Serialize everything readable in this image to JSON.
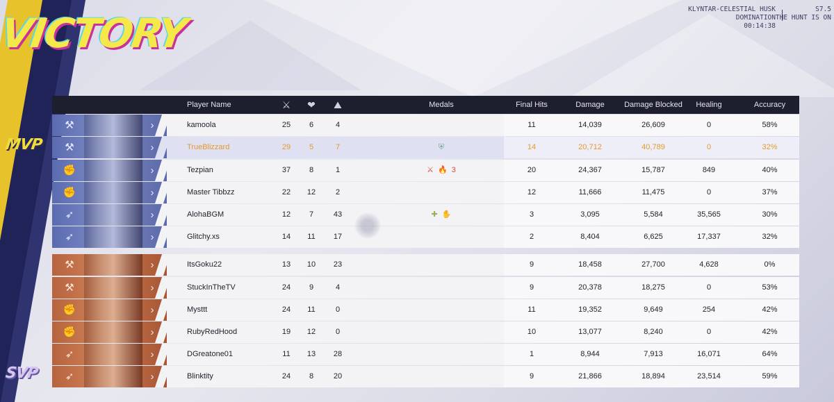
{
  "banner": {
    "title": "VICTORY"
  },
  "match": {
    "map": "KLYNTAR-CELESTIAL HUSK",
    "mode": "DOMINATION",
    "time": "00:14:38"
  },
  "season": {
    "number": "S7.5",
    "name": "THE HUNT IS ON"
  },
  "badges": {
    "mvp": "MVP",
    "svp": "SVP"
  },
  "headers": {
    "player_name": "Player Name",
    "kills_icon": "crossed-swords-icon",
    "deaths_icon": "broken-heart-icon",
    "assists_icon": "assist-icon",
    "medals": "Medals",
    "final_hits": "Final Hits",
    "damage": "Damage",
    "damage_blocked": "Damage Blocked",
    "healing": "Healing",
    "accuracy": "Accuracy"
  },
  "teams": [
    {
      "color": "#5b6bb0",
      "players": [
        {
          "name": "kamoola",
          "role": "vanguard",
          "k": "25",
          "d": "6",
          "a": "4",
          "medals": [],
          "final_hits": "11",
          "damage": "14,039",
          "blocked": "26,609",
          "healing": "0",
          "accuracy": "58%",
          "mvp": false
        },
        {
          "name": "TrueBlizzard",
          "role": "vanguard",
          "k": "29",
          "d": "5",
          "a": "7",
          "medals": [
            "shield-medal-icon"
          ],
          "final_hits": "14",
          "damage": "20,712",
          "blocked": "40,789",
          "healing": "0",
          "accuracy": "32%",
          "mvp": true
        },
        {
          "name": "Tezpian",
          "role": "duelist",
          "k": "37",
          "d": "8",
          "a": "1",
          "medals": [
            "swords-medal-icon",
            "fire-medal-icon",
            "streak-medal-icon"
          ],
          "final_hits": "20",
          "damage": "24,367",
          "blocked": "15,787",
          "healing": "849",
          "accuracy": "40%",
          "mvp": false
        },
        {
          "name": "Master Tibbzz",
          "role": "duelist",
          "k": "22",
          "d": "12",
          "a": "2",
          "medals": [],
          "final_hits": "12",
          "damage": "11,666",
          "blocked": "11,475",
          "healing": "0",
          "accuracy": "37%",
          "mvp": false
        },
        {
          "name": "AlohaBGM",
          "role": "strategist",
          "k": "12",
          "d": "7",
          "a": "43",
          "medals": [
            "plus-medal-icon",
            "heal-hand-medal-icon"
          ],
          "final_hits": "3",
          "damage": "3,095",
          "blocked": "5,584",
          "healing": "35,565",
          "accuracy": "30%",
          "mvp": false
        },
        {
          "name": "Glitchy.xs",
          "role": "strategist",
          "k": "14",
          "d": "11",
          "a": "17",
          "medals": [],
          "final_hits": "2",
          "damage": "8,404",
          "blocked": "6,625",
          "healing": "17,337",
          "accuracy": "32%",
          "mvp": false
        }
      ]
    },
    {
      "color": "#b5643f",
      "players": [
        {
          "name": "ItsGoku22",
          "role": "vanguard",
          "k": "13",
          "d": "10",
          "a": "23",
          "medals": [],
          "final_hits": "9",
          "damage": "18,458",
          "blocked": "27,700",
          "healing": "4,628",
          "accuracy": "0%",
          "mvp": false
        },
        {
          "name": "StuckInTheTV",
          "role": "vanguard",
          "k": "24",
          "d": "9",
          "a": "4",
          "medals": [],
          "final_hits": "9",
          "damage": "20,378",
          "blocked": "18,275",
          "healing": "0",
          "accuracy": "53%",
          "mvp": false
        },
        {
          "name": "Mysttt",
          "role": "duelist",
          "k": "24",
          "d": "11",
          "a": "0",
          "medals": [],
          "final_hits": "11",
          "damage": "19,352",
          "blocked": "9,649",
          "healing": "254",
          "accuracy": "42%",
          "mvp": false
        },
        {
          "name": "RubyRedHood",
          "role": "duelist",
          "k": "19",
          "d": "12",
          "a": "0",
          "medals": [],
          "final_hits": "10",
          "damage": "13,077",
          "blocked": "8,240",
          "healing": "0",
          "accuracy": "42%",
          "mvp": false
        },
        {
          "name": "DGreatone01",
          "role": "strategist",
          "k": "11",
          "d": "13",
          "a": "28",
          "medals": [],
          "final_hits": "1",
          "damage": "8,944",
          "blocked": "7,913",
          "healing": "16,071",
          "accuracy": "64%",
          "mvp": false
        },
        {
          "name": "Blinktity",
          "role": "strategist",
          "k": "24",
          "d": "8",
          "a": "20",
          "medals": [],
          "final_hits": "9",
          "damage": "21,866",
          "blocked": "18,894",
          "healing": "23,514",
          "accuracy": "59%",
          "mvp": false
        }
      ]
    }
  ]
}
